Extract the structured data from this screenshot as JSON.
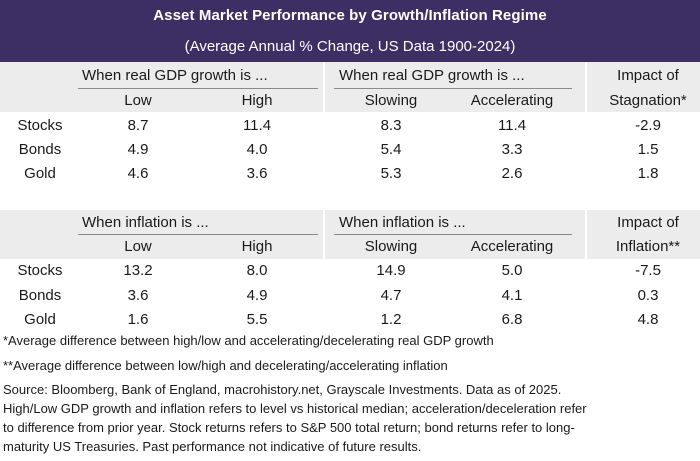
{
  "header": {
    "title": "Asset Market Performance by Growth/Inflation Regime",
    "subtitle": "(Average Annual % Change, US Data 1900-2024)"
  },
  "chart_data": {
    "type": "table",
    "title": "Asset Market Performance by Growth/Inflation Regime",
    "subtitle": "(Average Annual % Change, US Data 1900-2024)",
    "sections": [
      {
        "group1": "When real GDP growth is ...",
        "group2": "When real GDP growth is ...",
        "impact": [
          "Impact of",
          "Stagnation*"
        ],
        "columns": [
          "Low",
          "High",
          "Slowing",
          "Accelerating"
        ],
        "rows": [
          {
            "asset": "Stocks",
            "values": [
              "8.7",
              "11.4",
              "8.3",
              "11.4"
            ],
            "impact": "-2.9"
          },
          {
            "asset": "Bonds",
            "values": [
              "4.9",
              "4.0",
              "5.4",
              "3.3"
            ],
            "impact": "1.5"
          },
          {
            "asset": "Gold",
            "values": [
              "4.6",
              "3.6",
              "5.3",
              "2.6"
            ],
            "impact": "1.8"
          }
        ]
      },
      {
        "group1": "When inflation is ...",
        "group2": "When inflation is ...",
        "impact": [
          "Impact of",
          "Inflation**"
        ],
        "columns": [
          "Low",
          "High",
          "Slowing",
          "Accelerating"
        ],
        "rows": [
          {
            "asset": "Stocks",
            "values": [
              "13.2",
              "8.0",
              "14.9",
              "5.0"
            ],
            "impact": "-7.5"
          },
          {
            "asset": "Bonds",
            "values": [
              "3.6",
              "4.9",
              "4.7",
              "4.1"
            ],
            "impact": "0.3"
          },
          {
            "asset": "Gold",
            "values": [
              "1.6",
              "5.5",
              "1.2",
              "6.8"
            ],
            "impact": "4.8"
          }
        ]
      }
    ]
  },
  "footnotes": {
    "note1": "*Average difference between high/low and accelerating/decelerating real GDP growth",
    "note2": "**Average difference between low/high and decelerating/accelerating inflation"
  },
  "source": {
    "line1": "Source: Bloomberg, Bank of England, macrohistory.net, Grayscale Investments. Data as of 2025.",
    "line2": "High/Low GDP growth and inflation refers to level vs historical median; acceleration/deceleration refer",
    "line3": "to difference from prior year. Stock returns refers to S&P 500 total return; bond returns refer to long-",
    "line4": "maturity US Treasuries. Past performance not indicative of future results."
  },
  "colors": {
    "header_bg": "#3b2f63",
    "band": "#ececec",
    "text": "#1a1a1a"
  }
}
